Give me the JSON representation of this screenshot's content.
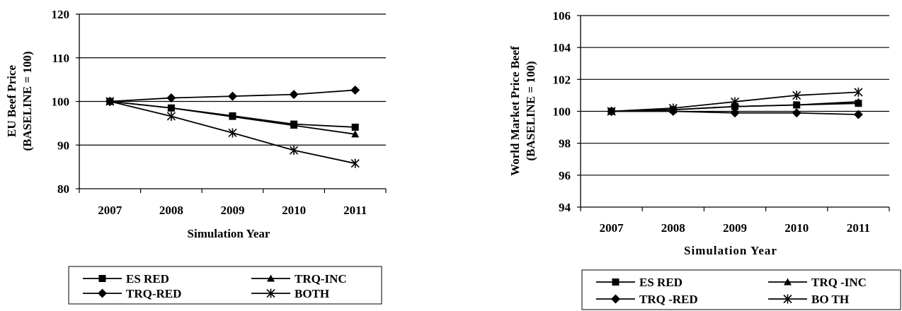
{
  "chart_data": [
    {
      "type": "line",
      "categories": [
        "2007",
        "2008",
        "2009",
        "2010",
        "2011"
      ],
      "xlabel": "Simulation Year",
      "ylabel_lines": [
        "EU Beef Price",
        "(BASELINE = 100)"
      ],
      "ylim": [
        80,
        120
      ],
      "yticks": [
        "80",
        "90",
        "100",
        "110",
        "120"
      ],
      "grid": true,
      "legend_position": "bottom",
      "series": [
        {
          "name": "ES RED",
          "marker": "square",
          "values": [
            100,
            98.5,
            96.7,
            94.8,
            94.1
          ]
        },
        {
          "name": "TRQ-INC",
          "marker": "triangle",
          "values": [
            100,
            98.5,
            96.5,
            94.5,
            92.5
          ]
        },
        {
          "name": "TRQ-RED",
          "marker": "diamond",
          "values": [
            100,
            100.8,
            101.2,
            101.6,
            102.6
          ]
        },
        {
          "name": "BOTH",
          "marker": "star",
          "values": [
            100,
            96.6,
            92.8,
            88.8,
            85.8
          ]
        }
      ]
    },
    {
      "type": "line",
      "categories": [
        "2007",
        "2008",
        "2009",
        "2010",
        "2011"
      ],
      "xlabel": "Simulation Year",
      "ylabel_lines": [
        "World Market Price Beef",
        "(BASELINE = 100)"
      ],
      "ylim": [
        94,
        106
      ],
      "yticks": [
        "94",
        "96",
        "98",
        "100",
        "102",
        "104",
        "106"
      ],
      "grid": true,
      "legend_position": "bottom",
      "series": [
        {
          "name": "ES RED",
          "marker": "square",
          "values": [
            100,
            100.1,
            100.3,
            100.4,
            100.5
          ]
        },
        {
          "name": "TRQ-INC",
          "marker": "triangle",
          "values": [
            100,
            100.1,
            100.3,
            100.4,
            100.6
          ]
        },
        {
          "name": "TRQ-RED",
          "marker": "diamond",
          "values": [
            100,
            100.0,
            99.9,
            99.9,
            99.8
          ]
        },
        {
          "name": "BOTH",
          "marker": "star",
          "values": [
            100,
            100.2,
            100.6,
            101.0,
            101.2
          ]
        }
      ]
    }
  ],
  "legends": [
    {
      "items": [
        "ES RED",
        "TRQ-INC",
        "TRQ-RED",
        "BOTH"
      ]
    },
    {
      "items": [
        "ES RED",
        "TRQ -INC",
        "TRQ -RED",
        "BO TH"
      ]
    }
  ]
}
